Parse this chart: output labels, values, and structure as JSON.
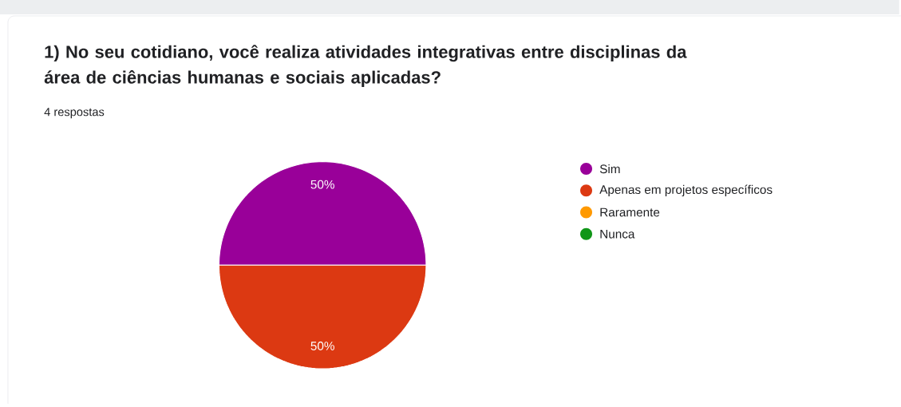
{
  "chart_data": {
    "type": "pie",
    "title": "1)  No seu cotidiano, você realiza atividades integrativas entre disciplinas da área de ciências humanas e sociais aplicadas?",
    "subtitle": "4 respostas",
    "categories": [
      "Sim",
      "Apenas em projetos específicos",
      "Raramente",
      "Nunca"
    ],
    "values": [
      50,
      50,
      0,
      0
    ],
    "colors": [
      "#990099",
      "#dc3912",
      "#ff9900",
      "#109618"
    ],
    "value_labels": [
      "50%",
      "50%",
      null,
      null
    ],
    "legend": "right"
  }
}
